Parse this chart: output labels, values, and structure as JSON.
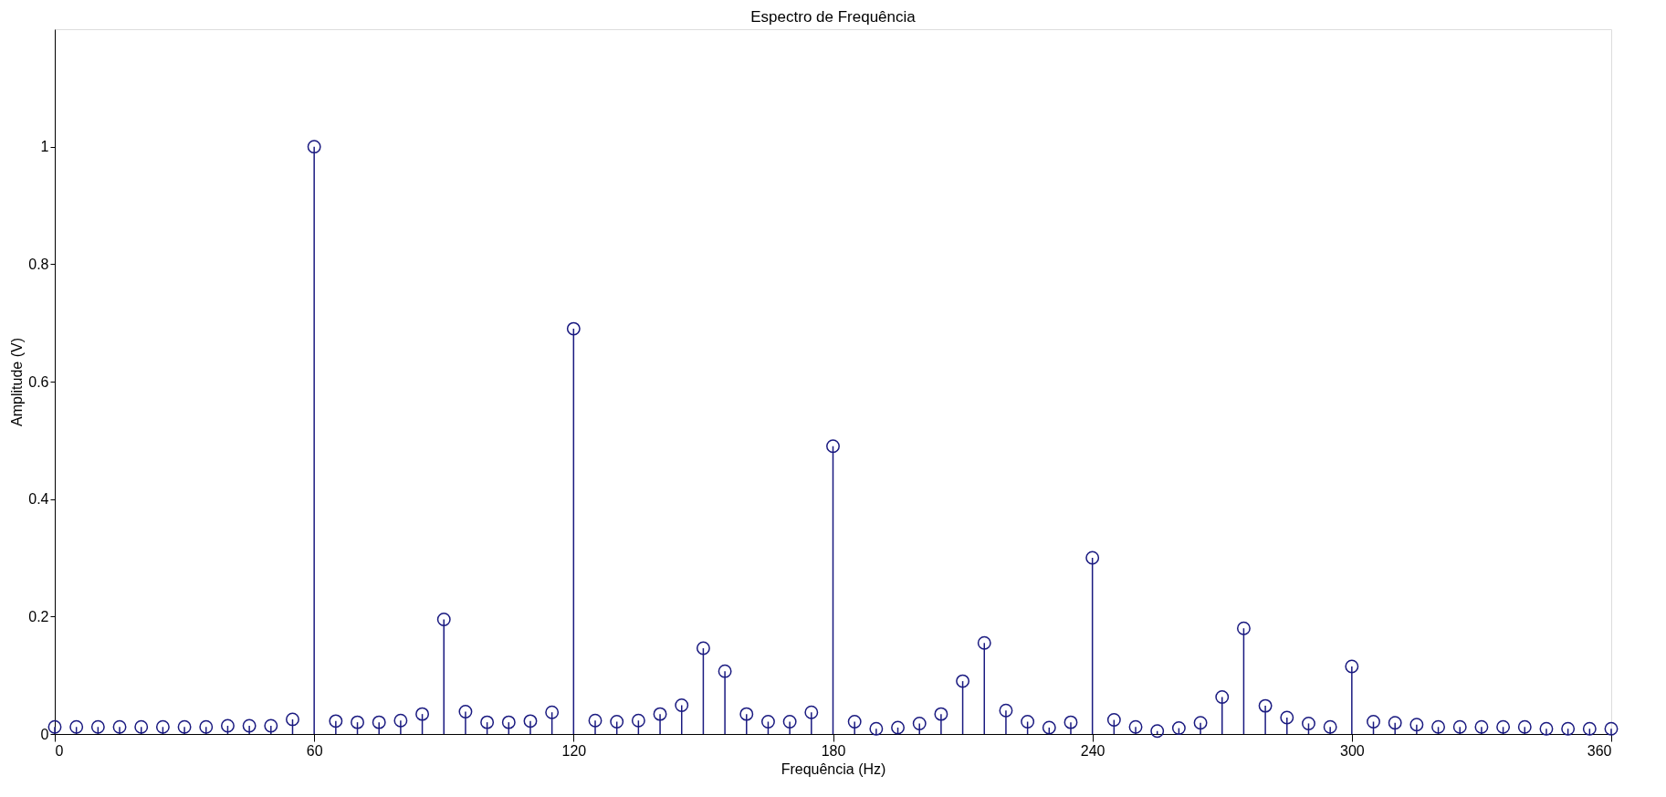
{
  "chart_data": {
    "type": "lollipop",
    "title": "Espectro de Frequência",
    "xlabel": "Frequência (Hz)",
    "ylabel": "Amplitude (V)",
    "x": [
      0,
      5,
      10,
      15,
      20,
      25,
      30,
      35,
      40,
      45,
      50,
      55,
      60,
      65,
      70,
      75,
      80,
      85,
      90,
      95,
      100,
      105,
      110,
      115,
      120,
      125,
      130,
      135,
      140,
      145,
      150,
      155,
      160,
      165,
      170,
      175,
      180,
      185,
      190,
      195,
      200,
      205,
      210,
      215,
      220,
      225,
      230,
      235,
      240,
      245,
      250,
      255,
      260,
      265,
      270,
      275,
      280,
      285,
      290,
      295,
      300,
      305,
      310,
      315,
      320,
      325,
      330,
      335,
      340,
      345,
      350,
      355,
      360
    ],
    "series": [
      {
        "color": "#1a1a80",
        "values": [
          0.012,
          0.012,
          0.012,
          0.012,
          0.012,
          0.012,
          0.012,
          0.012,
          0.014,
          0.014,
          0.014,
          0.025,
          1.0,
          0.022,
          0.02,
          0.02,
          0.023,
          0.034,
          0.195,
          0.038,
          0.02,
          0.02,
          0.022,
          0.037,
          0.69,
          0.023,
          0.021,
          0.023,
          0.034,
          0.049,
          0.146,
          0.107,
          0.034,
          0.021,
          0.021,
          0.037,
          0.49,
          0.021,
          0.009,
          0.011,
          0.018,
          0.034,
          0.09,
          0.155,
          0.04,
          0.021,
          0.011,
          0.02,
          0.3,
          0.024,
          0.012,
          0.005,
          0.01,
          0.019,
          0.063,
          0.18,
          0.048,
          0.028,
          0.018,
          0.012,
          0.115,
          0.021,
          0.019,
          0.016,
          0.012,
          0.012,
          0.012,
          0.012,
          0.012,
          0.009,
          0.009,
          0.009,
          0.009
        ]
      }
    ],
    "xlim": [
      0,
      360
    ],
    "xticks": [
      0,
      60,
      120,
      180,
      240,
      300,
      360
    ],
    "ylim": [
      0,
      1.2
    ],
    "yticks": [
      0,
      0.2,
      0.4,
      0.6,
      0.8,
      1
    ],
    "grid": false,
    "marker": "circle"
  }
}
